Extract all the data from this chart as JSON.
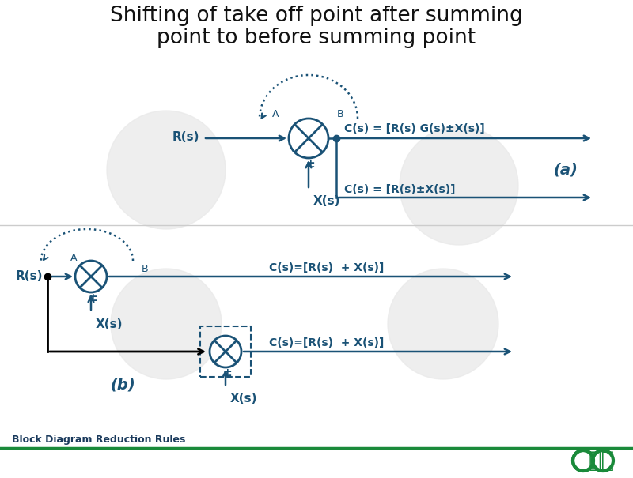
{
  "title_line1": "Shifting of take off point after summing",
  "title_line2": "point to before summing point",
  "title_fontsize": 19,
  "title_color": "#111111",
  "bg_color": "#ffffff",
  "diagram_color": "#1a5276",
  "black_color": "#000000",
  "footer_text": "Block Diagram Reduction Rules",
  "footer_color": "#1a3a5c",
  "geeks_color": "#1a8a3a",
  "watermark_color": "#e8e8e8",
  "eq_a1": "C(s) = [R(s) G(s)±X(s)]",
  "eq_a2": "C(s) = [R(s)±X(s)]",
  "eq_b1": "C(s)=[R(s)  + X(s)]",
  "eq_b2": "C(s)=[R(s)  + X(s)]"
}
